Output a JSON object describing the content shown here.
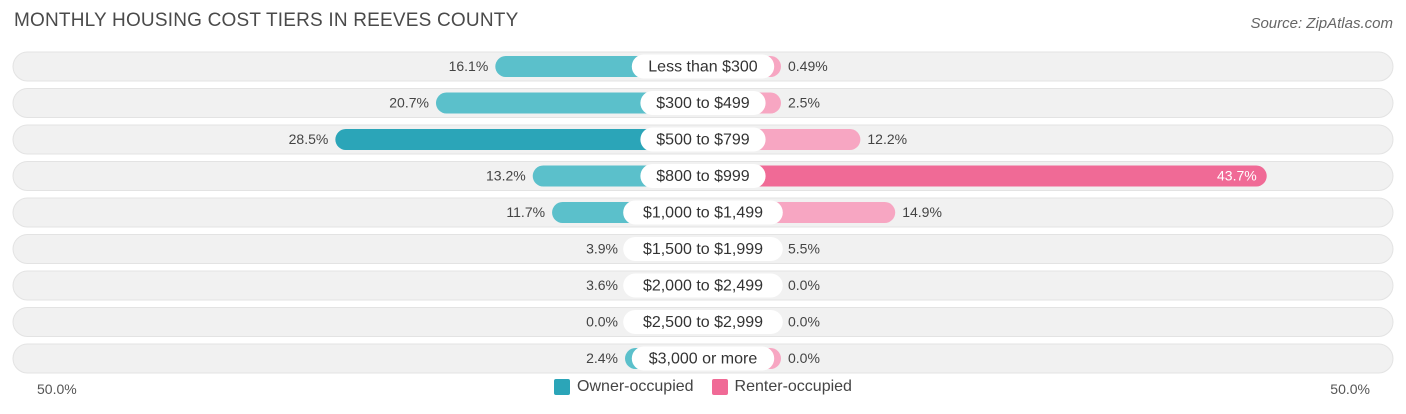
{
  "title": "MONTHLY HOUSING COST TIERS IN REEVES COUNTY",
  "source": "Source: ZipAtlas.com",
  "colors": {
    "owner": "#5bc0cb",
    "owner_highlight": "#2ba5b8",
    "renter": "#f7a6c2",
    "renter_highlight": "#f06a96",
    "row_bg": "#f1f1f1"
  },
  "legend": {
    "owner_label": "Owner-occupied",
    "renter_label": "Renter-occupied"
  },
  "axis": {
    "left_label": "50.0%",
    "right_label": "50.0%"
  },
  "chart_data": {
    "type": "bar",
    "orientation": "diverging-horizontal",
    "xlim": [
      -50,
      50
    ],
    "categories": [
      "Less than $300",
      "$300 to $499",
      "$500 to $799",
      "$800 to $999",
      "$1,000 to $1,499",
      "$1,500 to $1,999",
      "$2,000 to $2,499",
      "$2,500 to $2,999",
      "$3,000 or more"
    ],
    "series": [
      {
        "name": "Owner-occupied",
        "values": [
          16.1,
          20.7,
          28.5,
          13.2,
          11.7,
          3.9,
          3.6,
          0.0,
          2.4
        ],
        "labels": [
          "16.1%",
          "20.7%",
          "28.5%",
          "13.2%",
          "11.7%",
          "3.9%",
          "3.6%",
          "0.0%",
          "2.4%"
        ]
      },
      {
        "name": "Renter-occupied",
        "values": [
          0.49,
          2.5,
          12.2,
          43.7,
          14.9,
          5.5,
          0.0,
          0.0,
          0.0
        ],
        "labels": [
          "0.49%",
          "2.5%",
          "12.2%",
          "43.7%",
          "14.9%",
          "5.5%",
          "0.0%",
          "0.0%",
          "0.0%"
        ]
      }
    ],
    "highlighted_owner_index": 2,
    "highlighted_renter_index": 3
  }
}
